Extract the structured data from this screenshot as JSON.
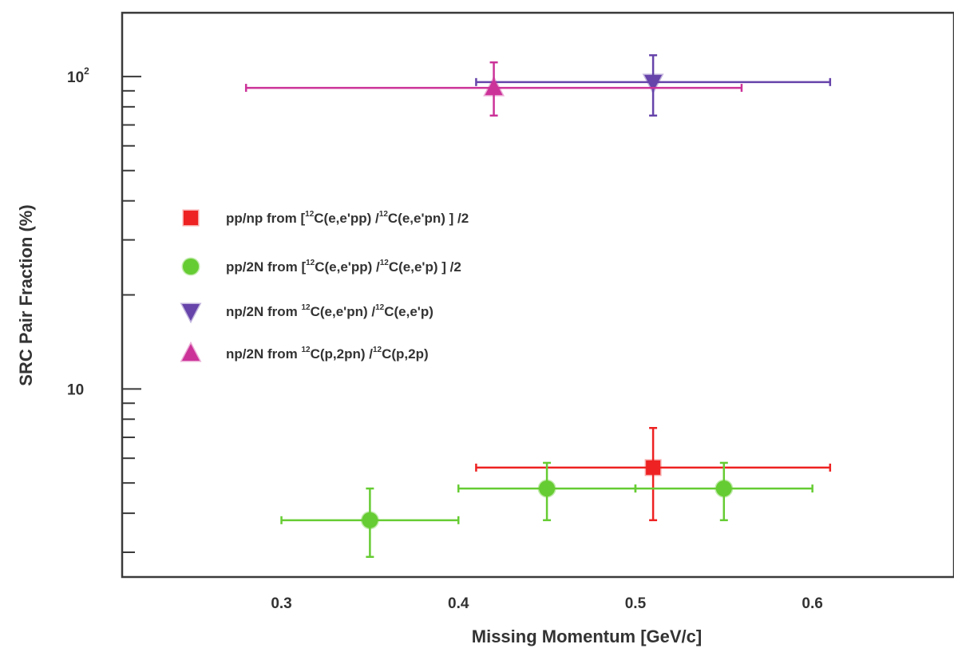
{
  "chart_data": {
    "type": "scatter",
    "title": "",
    "xlabel": "Missing Momentum [GeV/c]",
    "ylabel": "SRC Pair Fraction (%)",
    "xlim": [
      0.21,
      0.68
    ],
    "ylim": [
      2.5,
      160
    ],
    "y_scale": "log",
    "x_ticks": [
      0.3,
      0.4,
      0.5,
      0.6
    ],
    "x_tick_labels": [
      "0.3",
      "0.4",
      "0.5",
      "0.6"
    ],
    "y_tick_labels": [
      {
        "value": 10,
        "base": "10",
        "exp": ""
      },
      {
        "value": 100,
        "base": "10",
        "exp": "2"
      }
    ],
    "legend_position": "center-left",
    "series": [
      {
        "name_parts": [
          "pp/np from [",
          "12",
          "C(e,e'pp) /",
          "12",
          "C(e,e'pn) ] /2"
        ],
        "marker": "square",
        "color": "#ee2222",
        "points": [
          {
            "x": 0.51,
            "y": 5.6,
            "xerr": [
              0.1,
              0.1
            ],
            "yerr_low": 3.8,
            "yerr_high": 7.5
          }
        ]
      },
      {
        "name_parts": [
          "pp/2N from [",
          "12",
          "C(e,e'pp) /",
          "12",
          "C(e,e'p) ] /2"
        ],
        "marker": "circle",
        "color": "#66cc33",
        "points": [
          {
            "x": 0.35,
            "y": 3.8,
            "xerr": [
              0.05,
              0.05
            ],
            "yerr_low": 2.9,
            "yerr_high": 4.8
          },
          {
            "x": 0.45,
            "y": 4.8,
            "xerr": [
              0.05,
              0.05
            ],
            "yerr_low": 3.8,
            "yerr_high": 5.8
          },
          {
            "x": 0.55,
            "y": 4.8,
            "xerr": [
              0.05,
              0.05
            ],
            "yerr_low": 3.8,
            "yerr_high": 5.8
          }
        ]
      },
      {
        "name_parts": [
          "np/2N from ",
          "12",
          "C(e,e'pn) /",
          "12",
          "C(e,e'p)"
        ],
        "marker": "triangle-down",
        "color": "#6644aa",
        "points": [
          {
            "x": 0.51,
            "y": 96,
            "xerr": [
              0.1,
              0.1
            ],
            "yerr_low": 75,
            "yerr_high": 117
          }
        ]
      },
      {
        "name_parts": [
          "np/2N from ",
          "12",
          "C(p,2pn) /",
          "12",
          "C(p,2p)"
        ],
        "marker": "triangle-up",
        "color": "#cc3399",
        "points": [
          {
            "x": 0.42,
            "y": 92,
            "xerr": [
              0.14,
              0.14
            ],
            "yerr_low": 75,
            "yerr_high": 111
          }
        ]
      }
    ]
  }
}
